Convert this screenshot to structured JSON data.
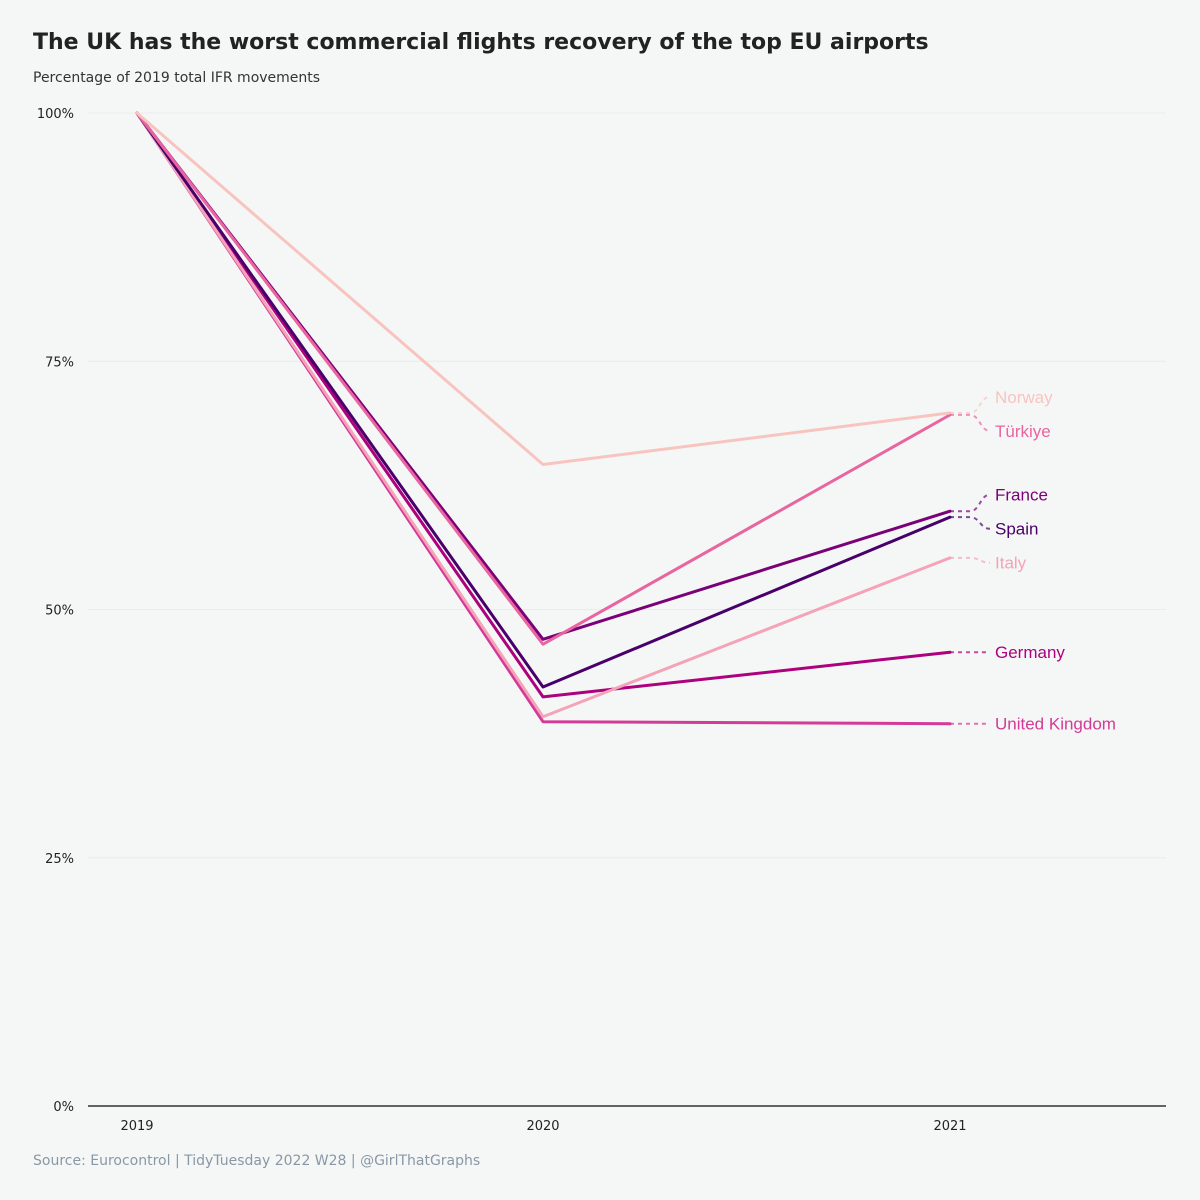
{
  "header": {
    "title": "The UK has the worst commercial flights recovery of the top EU airports",
    "subtitle": "Percentage of 2019 total IFR movements"
  },
  "footer": {
    "caption": "Source: Eurocontrol | TidyTuesday 2022 W28 | @GirlThatGraphs"
  },
  "chart_data": {
    "type": "line",
    "title": "The UK has the worst commercial flights recovery of the top EU airports",
    "subtitle": "Percentage of 2019 total IFR movements",
    "xlabel": "",
    "ylabel": "",
    "x": [
      "2019",
      "2020",
      "2021"
    ],
    "ylim": [
      0,
      100
    ],
    "yticks": [
      0,
      25,
      50,
      75,
      100
    ],
    "ytick_labels": [
      "0%",
      "25%",
      "50%",
      "75%",
      "100%"
    ],
    "grid": true,
    "legend": "direct labels at line ends",
    "series": [
      {
        "name": "Norway",
        "color": "#f8c4bf",
        "values": [
          100,
          64.6,
          69.8
        ]
      },
      {
        "name": "Türkiye",
        "color": "#e8659f",
        "values": [
          100,
          46.5,
          69.6
        ]
      },
      {
        "name": "France",
        "color": "#7a0177",
        "values": [
          100,
          47.0,
          59.9
        ]
      },
      {
        "name": "Spain",
        "color": "#49006a",
        "values": [
          100,
          42.2,
          59.3
        ]
      },
      {
        "name": "Italy",
        "color": "#f4a3b8",
        "values": [
          100,
          39.2,
          55.2
        ]
      },
      {
        "name": "Germany",
        "color": "#ae017e",
        "values": [
          100,
          41.2,
          45.7
        ]
      },
      {
        "name": "United Kingdom",
        "color": "#d43a97",
        "values": [
          100,
          38.7,
          38.5
        ]
      }
    ]
  }
}
